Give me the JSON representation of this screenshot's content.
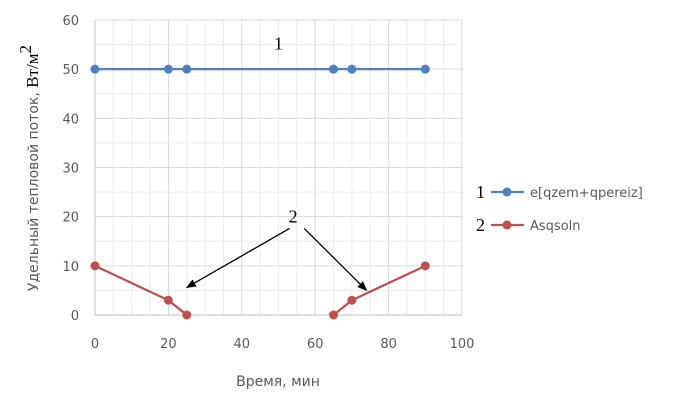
{
  "chart_data": {
    "type": "line",
    "xlabel": "Время, мин",
    "ylabel": "Удельный тепловой поток, ",
    "ylabel_unit": "Вт/м",
    "ylabel_unit_sup": "2",
    "xlim": [
      0,
      100
    ],
    "ylim": [
      0,
      60
    ],
    "xticks": [
      0,
      20,
      40,
      60,
      80,
      100
    ],
    "yticks": [
      0,
      10,
      20,
      30,
      40,
      50,
      60
    ],
    "grid": true,
    "legend_position": "right",
    "series": [
      {
        "name": "e[qzem+qpereiz]",
        "legend_number": "1",
        "color": "#4F81BD",
        "x": [
          0,
          20,
          25,
          65,
          70,
          90
        ],
        "y": [
          50,
          50,
          50,
          50,
          50,
          50
        ],
        "segments": [
          [
            0,
            5
          ]
        ]
      },
      {
        "name": "Asqsoln",
        "legend_number": "2",
        "color": "#C0504D",
        "x": [
          0,
          20,
          25,
          65,
          70,
          90
        ],
        "y": [
          10,
          3,
          0,
          0,
          3,
          10
        ],
        "segments": [
          [
            0,
            2
          ],
          [
            3,
            5
          ]
        ]
      }
    ],
    "annotations": [
      {
        "text": "1",
        "x": 50,
        "y": 54
      },
      {
        "text": "2",
        "x": 54,
        "y": 18.8
      }
    ],
    "arrows": [
      {
        "from": [
          53,
          17.6
        ],
        "to": [
          25,
          5.6
        ]
      },
      {
        "from": [
          57,
          17.6
        ],
        "to": [
          74,
          5.0
        ]
      }
    ]
  }
}
